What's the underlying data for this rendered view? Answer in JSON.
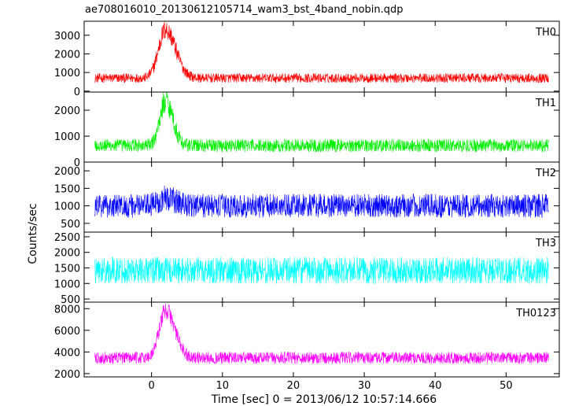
{
  "title": "ae708016010_20130612105714_wam3_bst_4band_nobin.qdp",
  "xlabel": "Time [sec] 0 = 2013/06/12 10:57:14.666",
  "ylabel": "Counts/sec",
  "chart_data": {
    "type": "line",
    "title": "ae708016010_20130612105714_wam3_bst_4band_nobin.qdp",
    "xlabel": "Time [sec] 0 = 2013/06/12 10:57:14.666",
    "ylabel": "Counts/sec",
    "xlim": [
      -9.5,
      57.5
    ],
    "xticks": [
      0,
      10,
      20,
      30,
      40,
      50
    ],
    "x_tick_labels": [
      "0",
      "10",
      "20",
      "30",
      "40",
      "50"
    ],
    "x_range": [
      -8,
      56
    ],
    "grid": false,
    "legend": "none",
    "panels": [
      {
        "name": "TH0",
        "color": "#ff0000",
        "ylim": [
          -50,
          3750
        ],
        "yticks": [
          0,
          1000,
          2000,
          3000
        ],
        "y_tick_labels": [
          "0",
          "1000",
          "2000",
          "3000"
        ],
        "baseline": 700,
        "noise_amp": 280,
        "peak": {
          "time": 2.0,
          "height": 2600,
          "rise": 1.0,
          "decay": 1.4
        }
      },
      {
        "name": "TH1",
        "color": "#00ee00",
        "ylim": [
          0,
          2700
        ],
        "yticks": [
          0,
          1000,
          2000
        ],
        "y_tick_labels": [
          "0",
          "1000",
          "2000"
        ],
        "baseline": 640,
        "noise_amp": 280,
        "peak": {
          "time": 2.0,
          "height": 1750,
          "rise": 0.8,
          "decay": 1.0
        }
      },
      {
        "name": "TH2",
        "color": "#0000ff",
        "ylim": [
          250,
          2250
        ],
        "yticks": [
          500,
          1000,
          1500,
          2000
        ],
        "y_tick_labels": [
          "500",
          "1000",
          "1500",
          "2000"
        ],
        "baseline": 1000,
        "noise_amp": 380,
        "peak": {
          "time": 2.0,
          "height": 220,
          "rise": 1.0,
          "decay": 1.5
        }
      },
      {
        "name": "TH3",
        "color": "#00ffff",
        "ylim": [
          400,
          2650
        ],
        "yticks": [
          500,
          1000,
          1500,
          2000,
          2500
        ],
        "y_tick_labels": [
          "500",
          "1000",
          "1500",
          "2000",
          "2500"
        ],
        "baseline": 1420,
        "noise_amp": 480,
        "peak": {
          "time": 2.0,
          "height": 0,
          "rise": 1.0,
          "decay": 1.0
        }
      },
      {
        "name": "TH0123",
        "color": "#ff00ff",
        "ylim": [
          1700,
          8600
        ],
        "yticks": [
          2000,
          4000,
          6000,
          8000
        ],
        "y_tick_labels": [
          "2000",
          "4000",
          "6000",
          "8000"
        ],
        "baseline": 3450,
        "noise_amp": 620,
        "peak": {
          "time": 2.0,
          "height": 4400,
          "rise": 0.9,
          "decay": 1.3
        }
      }
    ]
  }
}
